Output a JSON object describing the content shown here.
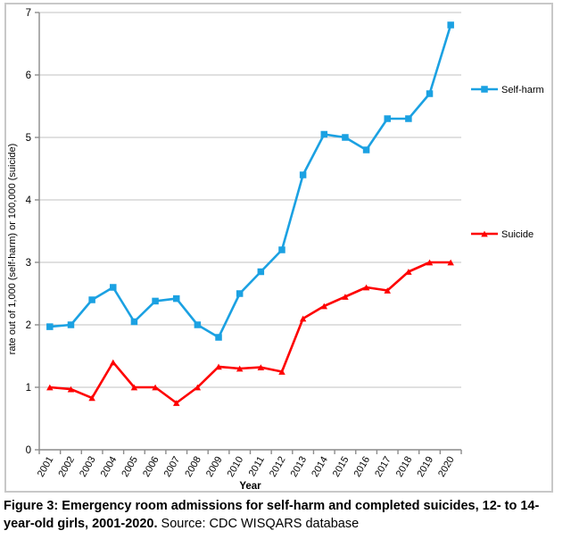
{
  "chart_data": {
    "type": "line",
    "x": [
      "2001",
      "2002",
      "2003",
      "2004",
      "2005",
      "2006",
      "2007",
      "2008",
      "2009",
      "2010",
      "2011",
      "2012",
      "2013",
      "2014",
      "2015",
      "2016",
      "2017",
      "2018",
      "2019",
      "2020"
    ],
    "series": [
      {
        "name": "Self-harm",
        "marker": "square",
        "color": "#1BA1E2",
        "values": [
          1.97,
          2.0,
          2.4,
          2.6,
          2.05,
          2.38,
          2.42,
          2.0,
          1.8,
          2.5,
          2.85,
          3.2,
          4.4,
          5.05,
          5.0,
          4.8,
          5.3,
          5.3,
          5.7,
          6.8
        ]
      },
      {
        "name": "Suicide",
        "marker": "triangle",
        "color": "#FE0000",
        "values": [
          1.0,
          0.97,
          0.83,
          1.4,
          1.0,
          1.0,
          0.75,
          1.0,
          1.33,
          1.3,
          1.32,
          1.25,
          2.1,
          2.3,
          2.45,
          2.6,
          2.55,
          2.85,
          3.0,
          3.0
        ]
      }
    ],
    "xlabel": "Year",
    "ylabel": "rate out of 1,000 (self-harm) or 100,000 (suicide)",
    "ylim": [
      0,
      7
    ],
    "ytick_step": 1,
    "grid": "horizontal",
    "legend_position": "right-outside"
  },
  "caption": {
    "bold": "Figure 3: Emergency room admissions for self-harm and completed suicides, 12- to 14-year-old girls, 2001-2020.",
    "regular": "Source: CDC WISQARS database"
  },
  "colors": {
    "grid": "#C0C0C0",
    "axis": "#8C8C8C",
    "frame": "#C8C8C8",
    "selfharm": "#1BA1E2",
    "suicide": "#FE0000"
  }
}
